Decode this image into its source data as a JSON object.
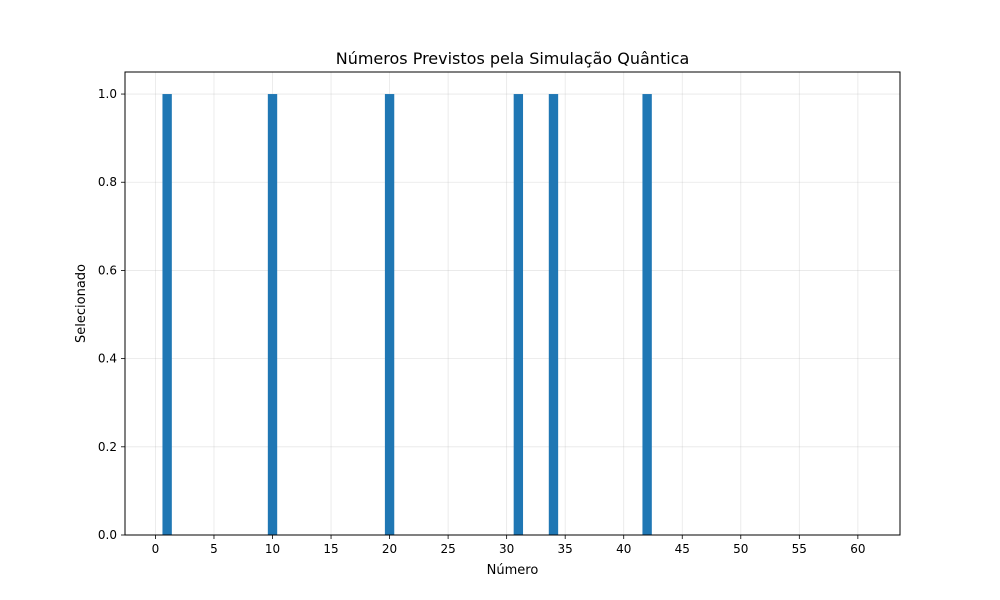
{
  "chart_data": {
    "type": "bar",
    "title": "Números Previstos pela Simulação Quântica",
    "xlabel": "Número",
    "ylabel": "Selecionado",
    "x": [
      1,
      10,
      20,
      31,
      34,
      42
    ],
    "values": [
      1.0,
      1.0,
      1.0,
      1.0,
      1.0,
      1.0
    ],
    "xlim": [
      -2.6,
      63.6
    ],
    "ylim": [
      0,
      1.05
    ],
    "xticks": [
      0,
      5,
      10,
      15,
      20,
      25,
      30,
      35,
      40,
      45,
      50,
      55,
      60
    ],
    "xtick_labels": [
      "0",
      "5",
      "10",
      "15",
      "20",
      "25",
      "30",
      "35",
      "40",
      "45",
      "50",
      "55",
      "60"
    ],
    "yticks": [
      0.0,
      0.2,
      0.4,
      0.6,
      0.8,
      1.0
    ],
    "ytick_labels": [
      "0.0",
      "0.2",
      "0.4",
      "0.6",
      "0.8",
      "1.0"
    ],
    "grid": true,
    "bar_color": "#1f77b4"
  }
}
